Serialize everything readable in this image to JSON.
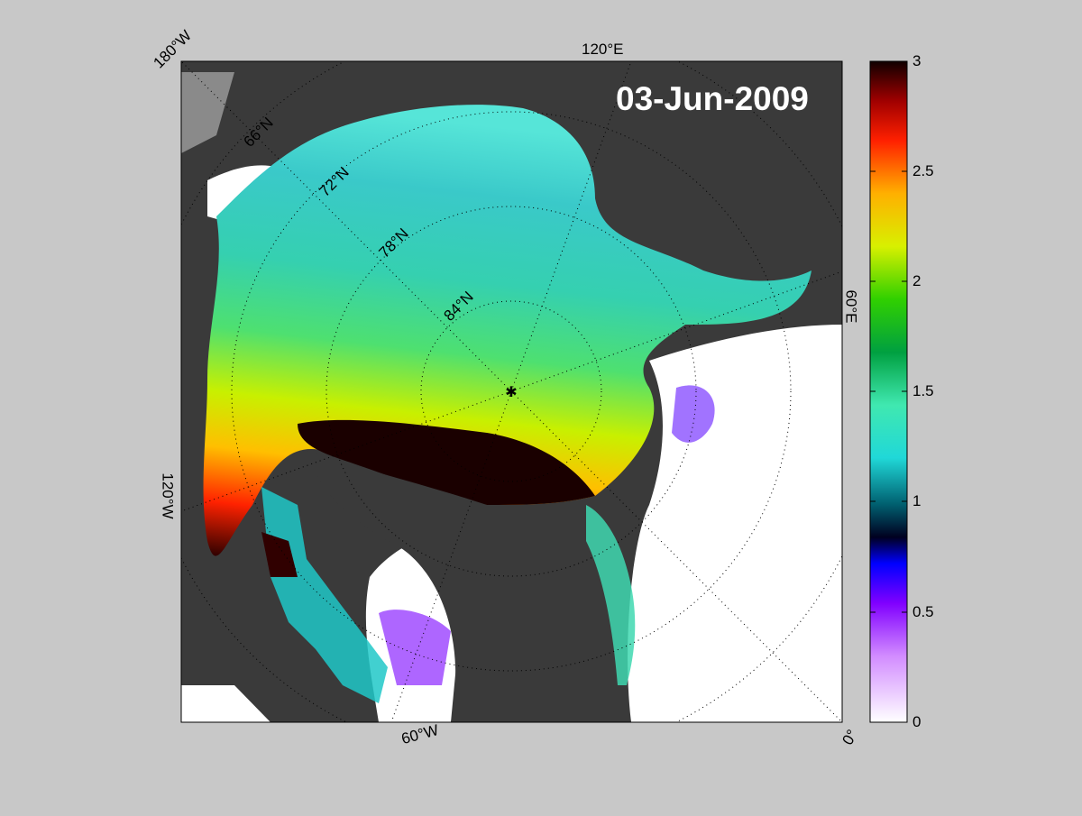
{
  "map": {
    "date": "03-Jun-2009",
    "longitude_labels": [
      "180°W",
      "120°E",
      "60°E",
      "0°",
      "60°W",
      "120°W"
    ],
    "latitude_labels": [
      "66°N",
      "72°N",
      "78°N",
      "84°N"
    ]
  },
  "colorbar": {
    "ticks": [
      "3",
      "2.5",
      "2",
      "1.5",
      "1",
      "0.5",
      "0"
    ],
    "range": [
      0,
      3
    ],
    "colors": [
      "#ffffff",
      "#9d00ff",
      "#0000ff",
      "#000000",
      "#00f0ff",
      "#3ce8a0",
      "#00b000",
      "#a6ff00",
      "#ffff00",
      "#ff9000",
      "#ff0000",
      "#000000"
    ]
  }
}
